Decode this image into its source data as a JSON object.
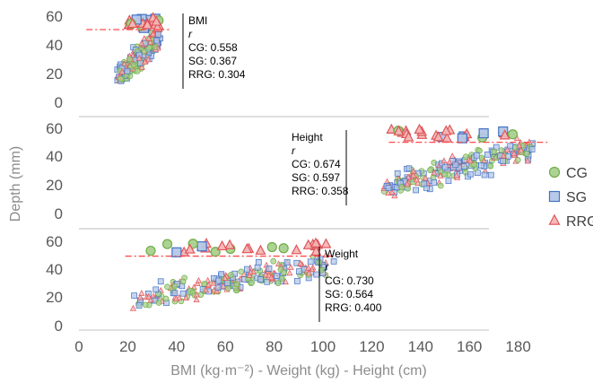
{
  "chart_data": {
    "type": "scatter",
    "title": "",
    "xlabel": "BMI (kg·m⁻²) - Weight (kg) - Height (cm)",
    "ylabel": "Depth (mm)",
    "xlim": [
      0,
      195
    ],
    "x_ticks": [
      "0",
      "20",
      "40",
      "60",
      "80",
      "100",
      "120",
      "140",
      "160",
      "180"
    ],
    "y_ticks": [
      "0",
      "20",
      "40",
      "60"
    ],
    "legend_position": "right",
    "series": [
      {
        "name": "CG",
        "marker": "circle",
        "color": "#a9d18e",
        "edge": "#70ad47"
      },
      {
        "name": "SG",
        "marker": "square",
        "color": "#b4c7e7",
        "edge": "#4472c4"
      },
      {
        "name": "RRG",
        "marker": "triangle",
        "color": "#f4b6b6",
        "edge": "#e0565b"
      }
    ],
    "panels": [
      {
        "name": "BMI",
        "ylim": [
          0,
          60
        ],
        "x_range": [
          16,
          33
        ],
        "y_range": [
          12,
          58
        ],
        "reference_line": {
          "y": 50,
          "x": [
            3,
            37
          ],
          "color": "#ff4b4b"
        },
        "annotation": {
          "title": "BMI",
          "subtitle": "r",
          "lines": [
            "CG: 0.558",
            "SG: 0.367",
            "RRG: 0.304"
          ]
        }
      },
      {
        "name": "Height",
        "ylim": [
          0,
          60
        ],
        "x_range": [
          125,
          185
        ],
        "y_range": [
          12,
          58
        ],
        "reference_line": {
          "y": 49,
          "x": [
            127,
            192
          ],
          "color": "#ff4b4b"
        },
        "annotation": {
          "title": "Height",
          "subtitle": "r",
          "lines": [
            "CG: 0.674",
            "SG: 0.597",
            "RRG: 0.358"
          ]
        }
      },
      {
        "name": "Weight",
        "ylim": [
          0,
          60
        ],
        "x_range": [
          22,
          103
        ],
        "y_range": [
          12,
          58
        ],
        "reference_line": {
          "y": 49,
          "x": [
            19,
            105
          ],
          "color": "#ff4b4b"
        },
        "annotation": {
          "title": "Weight",
          "subtitle": "r",
          "lines": [
            "CG: 0.730",
            "SG: 0.564",
            "RRG: 0.400"
          ]
        }
      }
    ]
  }
}
